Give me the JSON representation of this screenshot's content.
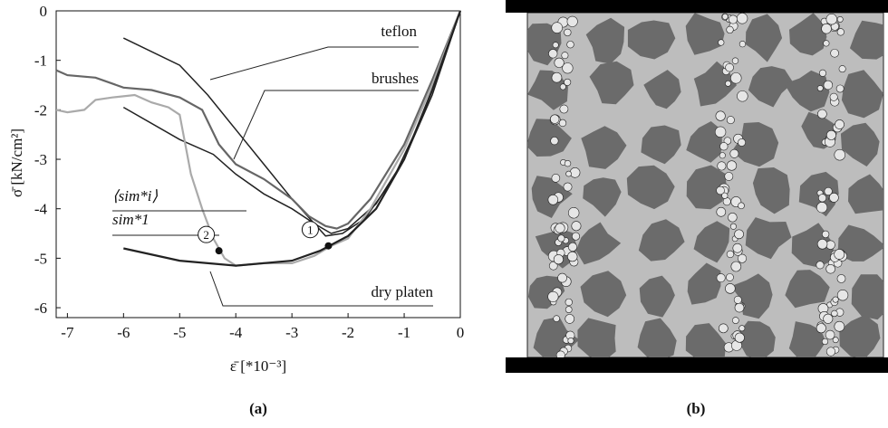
{
  "chart_data": {
    "type": "line",
    "y_label": "σ̄ [kN/cm²]",
    "x_label": "ε̄ [*10⁻³]",
    "caption": "(a)",
    "xlim": [
      -7.2,
      0
    ],
    "ylim": [
      -6.2,
      0
    ],
    "xticks": [
      -7,
      -6,
      -5,
      -4,
      -3,
      -2,
      -1,
      0
    ],
    "yticks": [
      0,
      -1,
      -2,
      -3,
      -4,
      -5,
      -6
    ],
    "series": [
      {
        "name": "teflon",
        "color": "#222222",
        "x": [
          -6,
          -5,
          -4.5,
          -4,
          -3.5,
          -3,
          -2.6,
          -2.4,
          -2.1,
          -1.7,
          -1.2,
          -0.7,
          -0.3,
          0
        ],
        "y": [
          -0.55,
          -1.1,
          -1.7,
          -2.4,
          -3.1,
          -3.8,
          -4.3,
          -4.55,
          -4.5,
          -4.2,
          -3.4,
          -2.2,
          -1.0,
          0
        ]
      },
      {
        "name": "brushes",
        "color": "#222222",
        "x": [
          -6,
          -5,
          -4.4,
          -4,
          -3.5,
          -3,
          -2.6,
          -2.3,
          -2,
          -1.5,
          -1,
          -0.5,
          0
        ],
        "y": [
          -1.95,
          -2.6,
          -2.9,
          -3.3,
          -3.7,
          -4.0,
          -4.3,
          -4.5,
          -4.4,
          -3.9,
          -3.0,
          -1.7,
          0
        ]
      },
      {
        "name": "⟨sim*i⟩",
        "color": "#666666",
        "x": [
          -7.2,
          -7,
          -6.5,
          -6,
          -5.5,
          -5,
          -4.6,
          -4.3,
          -4,
          -3.5,
          -3,
          -2.7,
          -2.4,
          -2.2,
          -2,
          -1.6,
          -1,
          -0.5,
          0
        ],
        "y": [
          -1.2,
          -1.3,
          -1.35,
          -1.55,
          -1.6,
          -1.75,
          -2.0,
          -2.7,
          -3.1,
          -3.4,
          -3.8,
          -4.15,
          -4.35,
          -4.4,
          -4.3,
          -3.8,
          -2.7,
          -1.4,
          0
        ]
      },
      {
        "name": "sim*1",
        "color": "#aaaaaa",
        "x": [
          -7.2,
          -7,
          -6.7,
          -6.5,
          -6.2,
          -5.8,
          -5.5,
          -5.2,
          -5,
          -4.8,
          -4.6,
          -4.4,
          -4.2,
          -4,
          -3.5,
          -3,
          -2.6,
          -2.3,
          -2,
          -1.6,
          -1,
          -0.5,
          0
        ],
        "y": [
          -2.0,
          -2.05,
          -2.0,
          -1.8,
          -1.75,
          -1.7,
          -1.85,
          -1.95,
          -2.1,
          -3.3,
          -4.0,
          -4.6,
          -5.0,
          -5.15,
          -5.1,
          -5.1,
          -4.95,
          -4.75,
          -4.6,
          -4.0,
          -2.8,
          -1.5,
          0
        ]
      },
      {
        "name": "dry platen",
        "color": "#222222",
        "x": [
          -6,
          -5,
          -4,
          -3,
          -2.5,
          -2,
          -1.5,
          -1,
          -0.5,
          0
        ],
        "y": [
          -4.8,
          -5.05,
          -5.15,
          -5.05,
          -4.85,
          -4.55,
          -4.0,
          -3.0,
          -1.6,
          0
        ]
      }
    ],
    "points": [
      {
        "label": "1",
        "x": -2.35,
        "y": -4.75
      },
      {
        "label": "2",
        "x": -4.3,
        "y": -4.85
      }
    ]
  },
  "image": {
    "caption": "(b)"
  }
}
